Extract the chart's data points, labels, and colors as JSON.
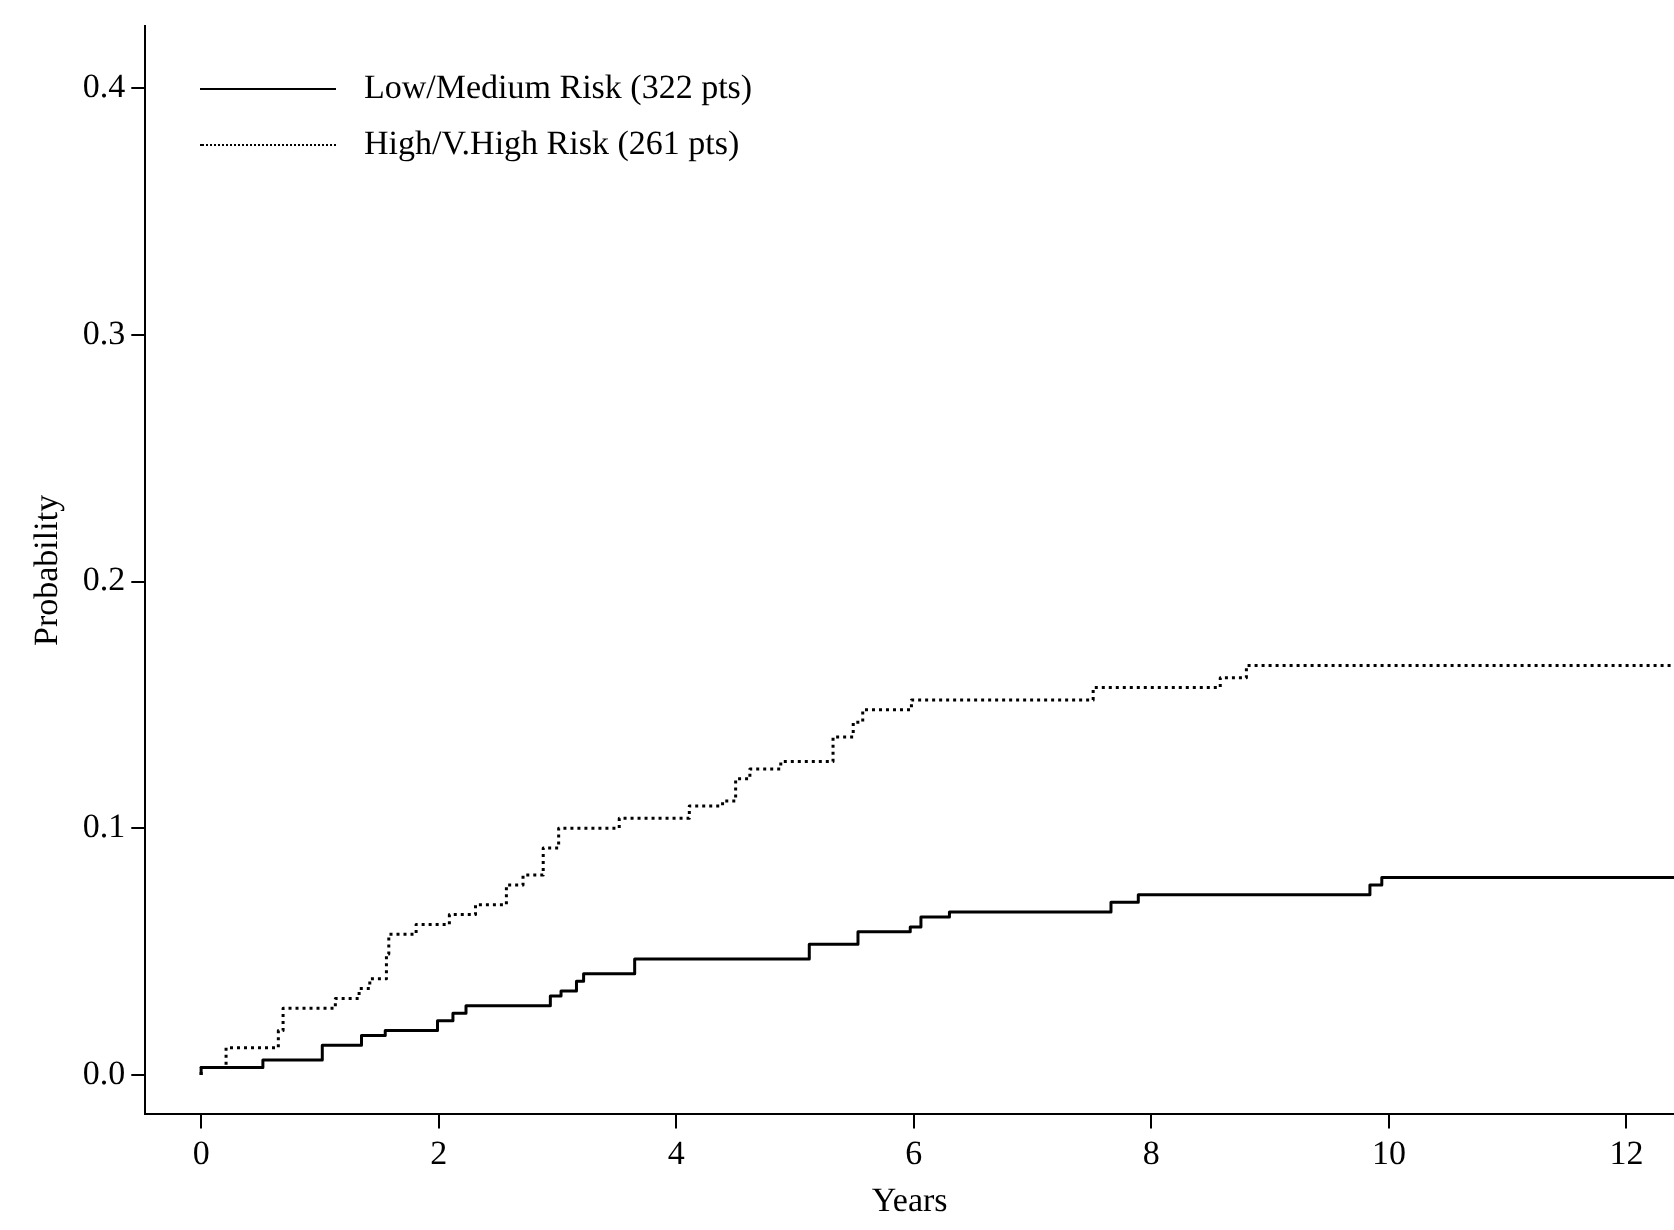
{
  "chart_data": {
    "type": "step",
    "xlabel": "Years",
    "ylabel": "Probability",
    "xlim": [
      -0.47,
      12.4
    ],
    "xticks": [
      0,
      2,
      4,
      6,
      8,
      10,
      12
    ],
    "ylim": [
      -0.016,
      0.425
    ],
    "yticks": [
      {
        "value": 0,
        "label": "0.0"
      },
      0.1,
      0.2,
      0.3,
      0.4
    ],
    "grid": false,
    "legend": "top left",
    "series": [
      {
        "name": "Low/Medium Risk (322 pts)",
        "color": "#000000",
        "line_style": "solid",
        "x": [
          0,
          0.52,
          1.02,
          1.35,
          1.55,
          1.99,
          2.12,
          2.23,
          2.94,
          3.03,
          3.16,
          3.22,
          3.65,
          5.12,
          5.53,
          5.97,
          6.06,
          6.3,
          7.66,
          7.89,
          9.84,
          9.94,
          10.53,
          12.4
        ],
        "values": [
          0,
          0.003,
          0.006,
          0.012,
          0.016,
          0.018,
          0.022,
          0.025,
          0.028,
          0.032,
          0.034,
          0.038,
          0.041,
          0.047,
          0.053,
          0.058,
          0.06,
          0.064,
          0.066,
          0.07,
          0.073,
          0.077,
          0.08,
          0.08
        ]
      },
      {
        "name": "High/V.High Risk (261 pts)",
        "color": "#000000",
        "line_style": "dotted",
        "x": [
          0,
          0.21,
          0.65,
          0.69,
          1.13,
          1.33,
          1.42,
          1.56,
          1.58,
          1.81,
          2.09,
          2.31,
          2.57,
          2.71,
          2.88,
          3.01,
          3.52,
          4.11,
          4.39,
          4.5,
          4.62,
          4.88,
          5.32,
          5.49,
          5.57,
          5.98,
          7.51,
          8.58,
          8.8,
          10.38,
          12.4
        ],
        "values": [
          0,
          0.003,
          0.011,
          0.018,
          0.027,
          0.031,
          0.035,
          0.039,
          0.049,
          0.057,
          0.061,
          0.065,
          0.069,
          0.077,
          0.081,
          0.092,
          0.1,
          0.104,
          0.109,
          0.111,
          0.12,
          0.124,
          0.127,
          0.137,
          0.143,
          0.148,
          0.152,
          0.157,
          0.161,
          0.166,
          0.166
        ]
      }
    ]
  }
}
